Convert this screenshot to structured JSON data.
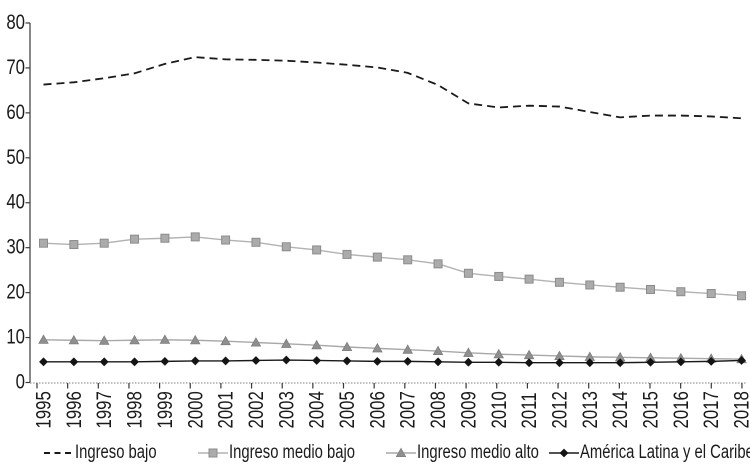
{
  "figure": {
    "background": "#ffffff",
    "text_color": "#1a1a1a"
  },
  "legend": [
    {
      "label": "Ingreso bajo",
      "marker": "dash",
      "color": "#1a1a1a",
      "line_color": "#1a1a1a"
    },
    {
      "label": "Ingreso medio bajo",
      "marker": "square",
      "color": "#ababab",
      "line_color": "#b2b2b2"
    },
    {
      "label": "Ingreso medio alto",
      "marker": "triangle",
      "color": "#8f8f8f",
      "line_color": "#a8a8a8"
    },
    {
      "label": "América Latina y el Caribe",
      "marker": "diamond",
      "color": "#141414",
      "line_color": "#1a1a1a"
    }
  ],
  "chart_data": {
    "type": "line",
    "title": "",
    "xlabel": "",
    "ylabel": "",
    "grid": false,
    "legend_position": "bottom",
    "ylim": [
      0,
      80
    ],
    "yticks": [
      0,
      10,
      20,
      30,
      40,
      50,
      60,
      70,
      80
    ],
    "x": [
      1995,
      1996,
      1997,
      1998,
      1999,
      2000,
      2001,
      2002,
      2003,
      2004,
      2005,
      2006,
      2007,
      2008,
      2009,
      2010,
      2011,
      2012,
      2013,
      2014,
      2015,
      2016,
      2017,
      2018
    ],
    "series": [
      {
        "name": "Ingreso bajo",
        "line_style": "dashed",
        "marker": "none",
        "color": "#1a1a1a",
        "line_color": "#1a1a1a",
        "values": [
          66.3,
          66.8,
          67.7,
          68.8,
          70.9,
          72.4,
          71.9,
          71.8,
          71.6,
          71.2,
          70.7,
          70.1,
          68.9,
          66.2,
          62.1,
          61.2,
          61.6,
          61.4,
          60.2,
          59.0,
          59.4,
          59.4,
          59.2,
          58.8
        ]
      },
      {
        "name": "Ingreso medio bajo",
        "line_style": "solid",
        "marker": "square",
        "color": "#ababab",
        "line_color": "#b2b2b2",
        "values": [
          31.0,
          30.7,
          31.0,
          31.9,
          32.1,
          32.4,
          31.7,
          31.2,
          30.2,
          29.5,
          28.5,
          27.9,
          27.3,
          26.4,
          24.3,
          23.6,
          23.0,
          22.3,
          21.7,
          21.2,
          20.7,
          20.2,
          19.8,
          19.3
        ]
      },
      {
        "name": "Ingreso medio alto",
        "line_style": "solid",
        "marker": "triangle",
        "color": "#8f8f8f",
        "line_color": "#a8a8a8",
        "values": [
          9.5,
          9.4,
          9.3,
          9.4,
          9.5,
          9.4,
          9.2,
          8.9,
          8.6,
          8.3,
          7.9,
          7.6,
          7.3,
          7.0,
          6.6,
          6.3,
          6.1,
          5.9,
          5.7,
          5.6,
          5.5,
          5.4,
          5.3,
          5.2
        ]
      },
      {
        "name": "América Latina y el Caribe",
        "line_style": "solid",
        "marker": "diamond",
        "color": "#141414",
        "line_color": "#1a1a1a",
        "values": [
          4.6,
          4.6,
          4.6,
          4.6,
          4.7,
          4.8,
          4.8,
          4.9,
          5.0,
          4.9,
          4.8,
          4.7,
          4.7,
          4.6,
          4.5,
          4.5,
          4.4,
          4.4,
          4.4,
          4.4,
          4.5,
          4.6,
          4.7,
          4.9
        ]
      }
    ]
  }
}
